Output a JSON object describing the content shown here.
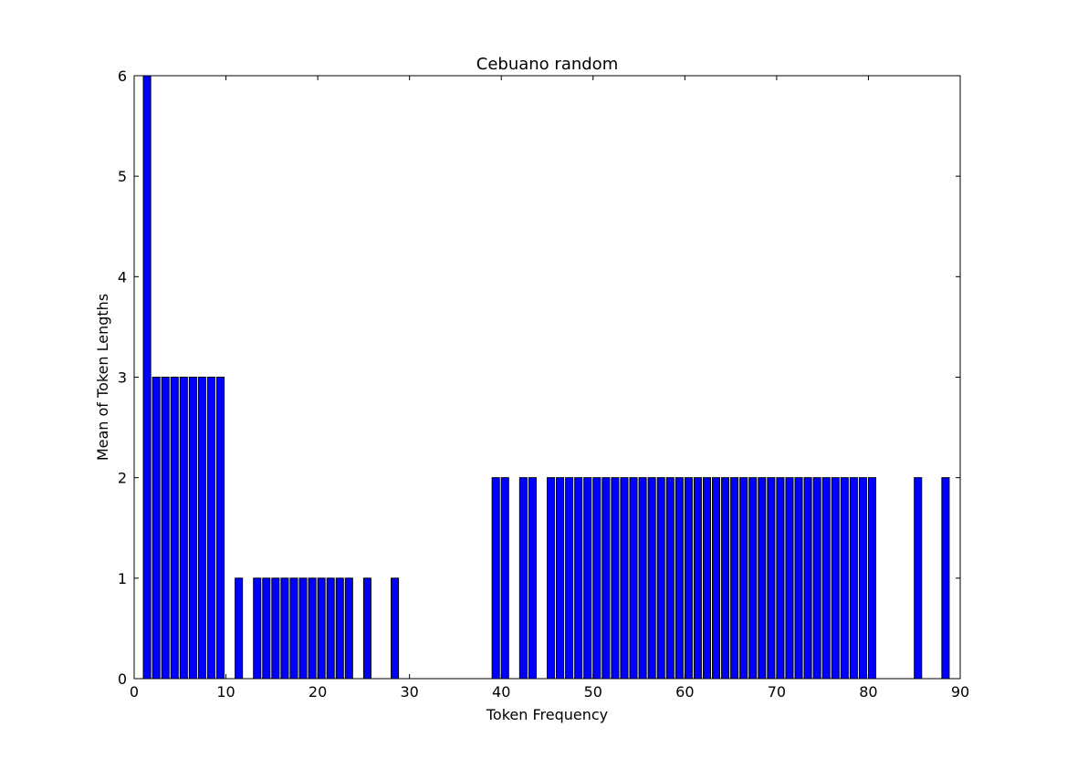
{
  "chart_data": {
    "type": "bar",
    "title": "Cebuano random",
    "xlabel": "Token Frequency",
    "ylabel": "Mean of Token Lengths",
    "xlim": [
      0,
      90
    ],
    "ylim": [
      0,
      6
    ],
    "xticks": [
      "0",
      "10",
      "20",
      "30",
      "40",
      "50",
      "60",
      "70",
      "80",
      "90"
    ],
    "yticks": [
      "0",
      "1",
      "2",
      "3",
      "4",
      "5",
      "6"
    ],
    "bar_color": "#0000ff",
    "bar_edge_color": "#000000",
    "grid": false,
    "points": [
      {
        "x": 1,
        "y": 6
      },
      {
        "x": 2,
        "y": 3
      },
      {
        "x": 3,
        "y": 3
      },
      {
        "x": 4,
        "y": 3
      },
      {
        "x": 5,
        "y": 3
      },
      {
        "x": 6,
        "y": 3
      },
      {
        "x": 7,
        "y": 3
      },
      {
        "x": 8,
        "y": 3
      },
      {
        "x": 9,
        "y": 3
      },
      {
        "x": 11,
        "y": 1
      },
      {
        "x": 13,
        "y": 1
      },
      {
        "x": 14,
        "y": 1
      },
      {
        "x": 15,
        "y": 1
      },
      {
        "x": 16,
        "y": 1
      },
      {
        "x": 17,
        "y": 1
      },
      {
        "x": 18,
        "y": 1
      },
      {
        "x": 19,
        "y": 1
      },
      {
        "x": 20,
        "y": 1
      },
      {
        "x": 21,
        "y": 1
      },
      {
        "x": 22,
        "y": 1
      },
      {
        "x": 23,
        "y": 1
      },
      {
        "x": 25,
        "y": 1
      },
      {
        "x": 28,
        "y": 1
      },
      {
        "x": 39,
        "y": 2
      },
      {
        "x": 40,
        "y": 2
      },
      {
        "x": 42,
        "y": 2
      },
      {
        "x": 43,
        "y": 2
      },
      {
        "x": 45,
        "y": 2
      },
      {
        "x": 46,
        "y": 2
      },
      {
        "x": 47,
        "y": 2
      },
      {
        "x": 48,
        "y": 2
      },
      {
        "x": 49,
        "y": 2
      },
      {
        "x": 50,
        "y": 2
      },
      {
        "x": 51,
        "y": 2
      },
      {
        "x": 52,
        "y": 2
      },
      {
        "x": 53,
        "y": 2
      },
      {
        "x": 54,
        "y": 2
      },
      {
        "x": 55,
        "y": 2
      },
      {
        "x": 56,
        "y": 2
      },
      {
        "x": 57,
        "y": 2
      },
      {
        "x": 58,
        "y": 2
      },
      {
        "x": 59,
        "y": 2
      },
      {
        "x": 60,
        "y": 2
      },
      {
        "x": 61,
        "y": 2
      },
      {
        "x": 62,
        "y": 2
      },
      {
        "x": 63,
        "y": 2
      },
      {
        "x": 64,
        "y": 2
      },
      {
        "x": 65,
        "y": 2
      },
      {
        "x": 66,
        "y": 2
      },
      {
        "x": 67,
        "y": 2
      },
      {
        "x": 68,
        "y": 2
      },
      {
        "x": 69,
        "y": 2
      },
      {
        "x": 70,
        "y": 2
      },
      {
        "x": 71,
        "y": 2
      },
      {
        "x": 72,
        "y": 2
      },
      {
        "x": 73,
        "y": 2
      },
      {
        "x": 74,
        "y": 2
      },
      {
        "x": 75,
        "y": 2
      },
      {
        "x": 76,
        "y": 2
      },
      {
        "x": 77,
        "y": 2
      },
      {
        "x": 78,
        "y": 2
      },
      {
        "x": 79,
        "y": 2
      },
      {
        "x": 80,
        "y": 2
      },
      {
        "x": 85,
        "y": 2
      },
      {
        "x": 88,
        "y": 2
      }
    ]
  }
}
